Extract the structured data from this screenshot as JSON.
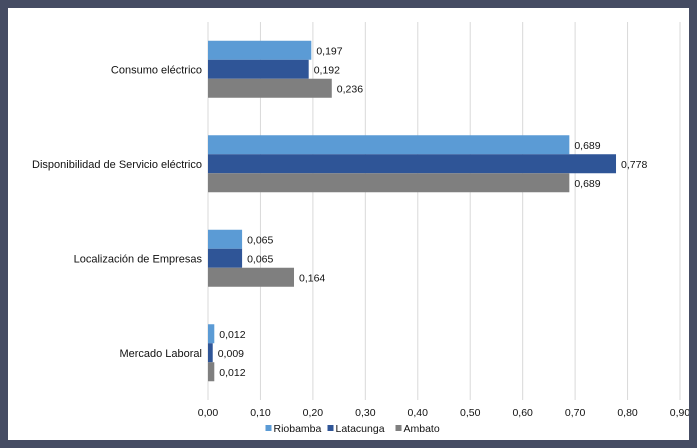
{
  "chart_data": {
    "type": "bar",
    "orientation": "horizontal",
    "categories": [
      "Consumo eléctrico",
      "Disponibilidad de Servicio eléctrico",
      "Localización de Empresas",
      "Mercado Laboral"
    ],
    "series": [
      {
        "name": "Riobamba",
        "color": "#5b9bd5",
        "values": [
          0.197,
          0.689,
          0.065,
          0.012
        ],
        "labels": [
          "0,197",
          "0,689",
          "0,065",
          "0,012"
        ]
      },
      {
        "name": "Latacunga",
        "color": "#2f5597",
        "values": [
          0.192,
          0.778,
          0.065,
          0.009
        ],
        "labels": [
          "0,192",
          "0,778",
          "0,065",
          "0,009"
        ]
      },
      {
        "name": "Ambato",
        "color": "#7f7f7f",
        "values": [
          0.236,
          0.689,
          0.164,
          0.012
        ],
        "labels": [
          "0,236",
          "0,689",
          "0,164",
          "0,012"
        ]
      }
    ],
    "xlim": [
      0,
      0.9
    ],
    "xticks": [
      0,
      0.1,
      0.2,
      0.3,
      0.4,
      0.5,
      0.6,
      0.7,
      0.8,
      0.9
    ],
    "xtick_labels": [
      "0,00",
      "0,10",
      "0,20",
      "0,30",
      "0,40",
      "0,50",
      "0,60",
      "0,70",
      "0,80",
      "0,90"
    ],
    "grid": true,
    "legend_position": "bottom",
    "title": "",
    "xlabel": "",
    "ylabel": ""
  }
}
